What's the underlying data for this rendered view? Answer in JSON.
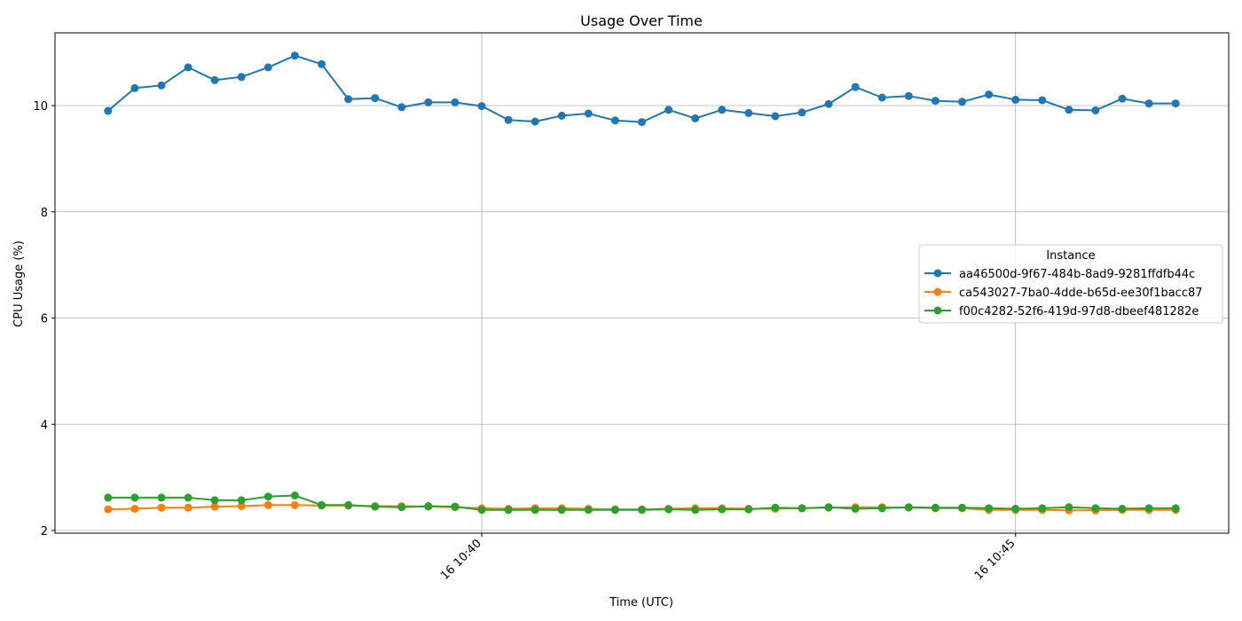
{
  "chart_data": {
    "type": "line",
    "title": "Usage Over Time",
    "xlabel": "Time (UTC)",
    "ylabel": "CPU Usage (%)",
    "x_range_minutes": [
      10.633,
      10.778
    ],
    "x_ticks": [
      {
        "label": "16 10:40",
        "minute": 40
      },
      {
        "label": "16 10:45",
        "minute": 45
      }
    ],
    "ylim": [
      1.95,
      11.37
    ],
    "y_ticks": [
      2,
      4,
      6,
      8,
      10
    ],
    "grid": true,
    "legend": {
      "title": "Instance",
      "placement": "center-right"
    },
    "x": [
      "10:36:30",
      "10:36:45",
      "10:37:00",
      "10:37:15",
      "10:37:30",
      "10:37:45",
      "10:38:00",
      "10:38:15",
      "10:38:30",
      "10:38:45",
      "10:39:00",
      "10:39:15",
      "10:39:30",
      "10:39:45",
      "10:40:00",
      "10:40:15",
      "10:40:30",
      "10:40:45",
      "10:41:00",
      "10:41:15",
      "10:41:30",
      "10:41:45",
      "10:42:00",
      "10:42:15",
      "10:42:30",
      "10:42:45",
      "10:43:00",
      "10:43:15",
      "10:43:30",
      "10:43:45",
      "10:44:00",
      "10:44:15",
      "10:44:30",
      "10:44:45",
      "10:45:00",
      "10:45:15",
      "10:45:30",
      "10:45:45",
      "10:46:00",
      "10:46:15",
      "10:46:30"
    ],
    "series": [
      {
        "name": "aa46500d-9f67-484b-8ad9-9281ffdfb44c",
        "color": "#1f77b4",
        "values": [
          9.9,
          10.33,
          10.38,
          10.72,
          10.48,
          10.54,
          10.72,
          10.94,
          10.78,
          10.12,
          10.14,
          9.97,
          10.06,
          10.06,
          9.99,
          9.73,
          9.7,
          9.81,
          9.85,
          9.72,
          9.69,
          9.92,
          9.76,
          9.92,
          9.86,
          9.8,
          9.87,
          10.03,
          10.35,
          10.15,
          10.18,
          10.09,
          10.07,
          10.21,
          10.11,
          10.1,
          9.92,
          9.91,
          10.13,
          10.04,
          10.04
        ]
      },
      {
        "name": "ca543027-7ba0-4dde-b65d-ee30f1bacc87",
        "color": "#ff7f0e",
        "values": [
          2.4,
          2.41,
          2.43,
          2.43,
          2.45,
          2.46,
          2.48,
          2.48,
          2.47,
          2.47,
          2.46,
          2.46,
          2.45,
          2.44,
          2.42,
          2.41,
          2.42,
          2.42,
          2.41,
          2.4,
          2.4,
          2.41,
          2.42,
          2.42,
          2.41,
          2.41,
          2.42,
          2.43,
          2.44,
          2.44,
          2.43,
          2.42,
          2.42,
          2.39,
          2.39,
          2.39,
          2.38,
          2.38,
          2.39,
          2.39,
          2.39
        ]
      },
      {
        "name": "f00c4282-52f6-419d-97d8-dbeef481282e",
        "color": "#2ca02c",
        "values": [
          2.62,
          2.62,
          2.62,
          2.62,
          2.57,
          2.57,
          2.64,
          2.66,
          2.48,
          2.48,
          2.45,
          2.44,
          2.46,
          2.45,
          2.39,
          2.39,
          2.39,
          2.39,
          2.39,
          2.39,
          2.39,
          2.4,
          2.39,
          2.4,
          2.4,
          2.43,
          2.42,
          2.44,
          2.41,
          2.42,
          2.44,
          2.43,
          2.43,
          2.42,
          2.41,
          2.42,
          2.44,
          2.42,
          2.41,
          2.42,
          2.42
        ]
      }
    ]
  }
}
